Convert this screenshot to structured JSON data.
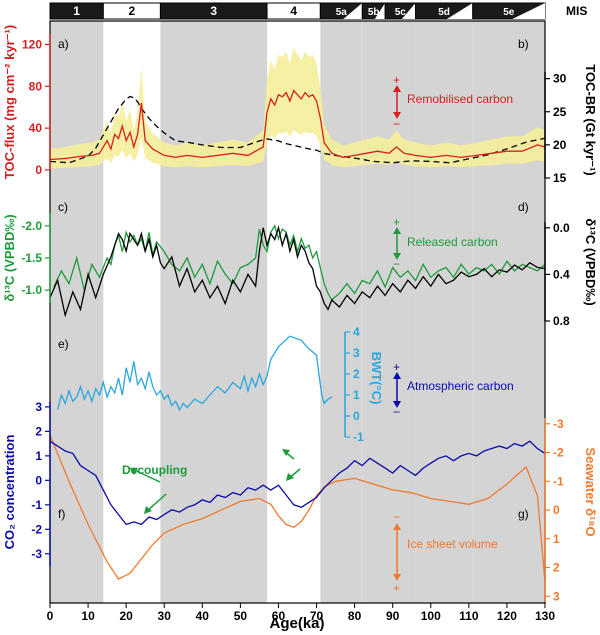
{
  "colors": {
    "toc_flux": "#d62020",
    "toc_flux_error": "#f5ee9a",
    "toc_br": "#000000",
    "d13c_green": "#1e9a3c",
    "d13c_black": "#000000",
    "bwt": "#2aa7dd",
    "co2": "#0a0aa8",
    "seawater_d18o": "#f07a30",
    "shading": "#d4d4d4",
    "mis_bar": "#1a1a1a"
  },
  "mis": {
    "label": "MIS",
    "stages": [
      {
        "name": "1",
        "start": 0,
        "end": 14
      },
      {
        "name": "2",
        "start": 14,
        "end": 29
      },
      {
        "name": "3",
        "start": 29,
        "end": 57
      },
      {
        "name": "4",
        "start": 57,
        "end": 71
      },
      {
        "name": "5a",
        "start": 71,
        "end": 82
      },
      {
        "name": "5b",
        "start": 82,
        "end": 88
      },
      {
        "name": "5c",
        "start": 88,
        "end": 96
      },
      {
        "name": "5d",
        "start": 96,
        "end": 111
      },
      {
        "name": "5e",
        "start": 111,
        "end": 130
      }
    ]
  },
  "x_axis": {
    "label": "Age(ka)",
    "range": [
      0,
      130
    ],
    "ticks": [
      0,
      10,
      20,
      30,
      40,
      50,
      60,
      70,
      80,
      90,
      100,
      110,
      120,
      130
    ]
  },
  "annotations": {
    "panel_a": "a)",
    "panel_b": "b)",
    "panel_c": "c)",
    "panel_d": "d)",
    "panel_e": "e)",
    "panel_f": "f)",
    "panel_g": "g)",
    "remobilised": "Remobilised carbon",
    "released": "Released carbon",
    "atmospheric": "Atmospheric carbon",
    "ice_sheet": "Ice sheet volume",
    "decoupling": "Decoupling",
    "plus": "+",
    "minus": "−"
  },
  "chart_data": [
    {
      "type": "area",
      "ylabel": "TOC-flux (mg cm⁻² kyr⁻¹)",
      "ylim": [
        0,
        130
      ],
      "yticks": [
        0,
        40,
        80,
        120
      ],
      "series": [
        {
          "x": [
            0,
            4,
            8,
            11,
            13,
            15,
            16,
            17,
            18,
            19,
            20,
            21,
            22,
            23,
            24,
            25,
            26,
            27,
            28,
            30,
            33,
            36,
            40,
            44,
            48,
            52,
            54,
            56,
            57,
            58,
            59,
            60,
            61,
            62,
            63,
            64,
            65,
            66,
            67,
            68,
            69,
            70,
            71,
            72,
            74,
            77,
            80,
            83,
            86,
            89,
            91,
            93,
            96,
            100,
            104,
            108,
            112,
            116,
            120,
            124,
            128,
            130
          ],
          "values": [
            10,
            11,
            13,
            14,
            16,
            28,
            20,
            34,
            30,
            42,
            28,
            36,
            22,
            34,
            64,
            28,
            24,
            20,
            18,
            14,
            12,
            14,
            12,
            14,
            16,
            14,
            18,
            22,
            55,
            68,
            62,
            72,
            70,
            74,
            66,
            76,
            72,
            68,
            74,
            70,
            72,
            66,
            50,
            26,
            16,
            12,
            14,
            16,
            18,
            16,
            22,
            16,
            14,
            12,
            14,
            12,
            14,
            16,
            18,
            18,
            24,
            22
          ]
        }
      ]
    },
    {
      "type": "line",
      "ylabel": "TOC-BR (Gt kyr⁻¹)",
      "ylim": [
        15,
        31
      ],
      "yticks": [
        15,
        20,
        25,
        30
      ],
      "series": [
        {
          "x": [
            0,
            5,
            10,
            12,
            15,
            18,
            20,
            21,
            22,
            23,
            24,
            26,
            28,
            30,
            33,
            36,
            40,
            45,
            50,
            55,
            57,
            60,
            62,
            65,
            68,
            70,
            72,
            75,
            80,
            85,
            90,
            95,
            100,
            105,
            110,
            115,
            120,
            125,
            130
          ],
          "values": [
            17.5,
            17.3,
            18.3,
            19.5,
            22.5,
            25.5,
            26.9,
            27.3,
            27.1,
            26.5,
            25.5,
            24.0,
            22.8,
            21.8,
            20.6,
            20.4,
            20.0,
            19.6,
            19.6,
            20.6,
            20.9,
            20.6,
            20.2,
            19.8,
            19.4,
            19.2,
            18.7,
            18.4,
            18.0,
            17.5,
            17.3,
            17.6,
            17.5,
            17.3,
            17.9,
            18.5,
            19.4,
            20.4,
            21.0
          ]
        }
      ]
    },
    {
      "type": "line",
      "ylabel": "δ¹³C (VPBD‰)",
      "ylim": [
        -0.8,
        -2.2
      ],
      "yticks": [
        -1.0,
        -1.5,
        -2.0
      ],
      "series": [
        {
          "x": [
            1,
            3,
            5,
            7,
            9,
            11,
            13,
            15,
            16,
            17,
            18,
            19,
            20,
            21,
            22,
            23,
            24,
            25,
            26,
            27,
            28,
            30,
            32,
            34,
            36,
            38,
            40,
            42,
            44,
            46,
            48,
            50,
            52,
            54,
            55,
            56,
            57,
            58,
            59,
            60,
            61,
            62,
            63,
            64,
            65,
            66,
            67,
            68,
            69,
            70,
            71,
            72,
            73,
            74,
            76,
            78,
            80,
            82,
            84,
            86,
            88,
            90,
            92,
            94,
            96,
            98,
            100,
            102,
            104,
            106,
            108,
            110,
            112,
            114,
            116,
            118,
            120,
            122,
            124,
            126,
            128,
            130
          ],
          "values": [
            -1.05,
            -1.3,
            -1.1,
            -1.5,
            -1.0,
            -1.4,
            -1.2,
            -1.5,
            -1.4,
            -1.7,
            -1.85,
            -1.6,
            -1.9,
            -1.75,
            -1.85,
            -1.7,
            -1.8,
            -1.6,
            -1.9,
            -1.55,
            -1.75,
            -1.6,
            -1.4,
            -1.3,
            -1.5,
            -1.2,
            -1.4,
            -1.1,
            -1.45,
            -1.25,
            -1.1,
            -1.35,
            -1.4,
            -1.5,
            -1.95,
            -1.7,
            -1.6,
            -1.9,
            -2.0,
            -1.8,
            -1.95,
            -1.9,
            -1.7,
            -1.85,
            -1.6,
            -1.8,
            -1.65,
            -1.7,
            -1.5,
            -1.6,
            -1.35,
            -1.1,
            -0.95,
            -0.85,
            -0.95,
            -1.1,
            -0.95,
            -1.15,
            -1.1,
            -1.3,
            -1.05,
            -1.35,
            -1.2,
            -1.3,
            -1.15,
            -1.4,
            -1.2,
            -1.3,
            -1.35,
            -1.2,
            -1.4,
            -1.25,
            -1.35,
            -1.3,
            -1.4,
            -1.25,
            -1.45,
            -1.3,
            -1.4,
            -1.35,
            -1.3,
            -1.4
          ]
        }
      ]
    },
    {
      "type": "line",
      "ylabel": "δ¹³C (VPBD‰)",
      "ylim": [
        0.8,
        -0.05
      ],
      "yticks": [
        0.0,
        0.4,
        0.8
      ],
      "series": [
        {
          "x": [
            0,
            2,
            4,
            6,
            8,
            10,
            12,
            14,
            16,
            17,
            18,
            19,
            20,
            21,
            22,
            23,
            24,
            25,
            26,
            27,
            28,
            29,
            30,
            32,
            34,
            36,
            38,
            40,
            42,
            44,
            46,
            48,
            50,
            52,
            54,
            55,
            56,
            57,
            58,
            59,
            60,
            61,
            62,
            63,
            64,
            65,
            66,
            67,
            68,
            69,
            70,
            71,
            72,
            73,
            74,
            76,
            78,
            80,
            82,
            84,
            86,
            88,
            90,
            92,
            94,
            96,
            98,
            100,
            102,
            104,
            106,
            108,
            110,
            112,
            114,
            116,
            118,
            120,
            122,
            124,
            126,
            128,
            130
          ],
          "values": [
            0.6,
            0.45,
            0.75,
            0.55,
            0.7,
            0.4,
            0.6,
            0.4,
            0.25,
            0.15,
            0.05,
            0.1,
            0.2,
            0.05,
            0.1,
            0.15,
            0.05,
            0.2,
            0.1,
            0.25,
            0.15,
            0.3,
            0.35,
            0.25,
            0.5,
            0.35,
            0.55,
            0.45,
            0.6,
            0.5,
            0.65,
            0.45,
            0.55,
            0.4,
            0.5,
            0.2,
            0.0,
            0.15,
            0.05,
            0.1,
            0.0,
            0.15,
            0.05,
            0.2,
            0.1,
            0.25,
            0.15,
            0.2,
            0.3,
            0.35,
            0.5,
            0.55,
            0.65,
            0.7,
            0.62,
            0.68,
            0.58,
            0.65,
            0.55,
            0.6,
            0.5,
            0.58,
            0.48,
            0.55,
            0.45,
            0.52,
            0.42,
            0.5,
            0.4,
            0.48,
            0.45,
            0.38,
            0.42,
            0.4,
            0.35,
            0.42,
            0.36,
            0.38,
            0.32,
            0.36,
            0.3,
            0.34,
            0.35
          ]
        }
      ]
    },
    {
      "type": "line",
      "ylabel": "BWT(°C)",
      "ylim": [
        -1,
        4
      ],
      "yticks": [
        -1,
        0,
        1,
        2,
        3,
        4
      ],
      "series": [
        {
          "x": [
            2,
            3,
            4,
            5,
            6,
            7,
            8,
            9,
            10,
            11,
            12,
            13,
            14,
            15,
            16,
            17,
            18,
            19,
            20,
            21,
            22,
            23,
            24,
            25,
            26,
            27,
            28,
            29,
            30,
            31,
            32,
            33,
            34,
            35,
            36,
            38,
            40,
            42,
            44,
            46,
            48,
            50,
            51,
            52,
            53,
            54,
            55,
            56,
            57,
            58,
            60,
            63,
            66,
            68,
            70,
            71,
            71.5,
            72,
            73,
            74
          ],
          "values": [
            0.3,
            1.0,
            0.6,
            1.2,
            0.7,
            0.9,
            1.4,
            0.8,
            1.2,
            0.7,
            1.3,
            1.0,
            1.6,
            0.9,
            1.4,
            1.1,
            1.8,
            1.0,
            2.3,
            1.6,
            2.6,
            1.5,
            1.8,
            1.3,
            2.1,
            1.4,
            1.0,
            1.2,
            0.8,
            1.0,
            0.5,
            0.7,
            0.3,
            0.6,
            0.4,
            0.8,
            0.6,
            1.0,
            1.4,
            1.1,
            1.6,
            1.3,
            1.9,
            1.2,
            1.8,
            1.4,
            2.0,
            1.5,
            1.9,
            2.7,
            3.3,
            3.8,
            3.6,
            3.2,
            2.9,
            1.5,
            0.9,
            0.6,
            0.8,
            0.9
          ]
        }
      ]
    },
    {
      "type": "line",
      "ylabel": "CO₂ concentration",
      "ylim": [
        -3.5,
        3.2
      ],
      "yticks": [
        -3,
        -2,
        -1,
        0,
        1,
        2,
        3
      ],
      "series": [
        {
          "x": [
            0,
            2,
            4,
            6,
            8,
            10,
            12,
            14,
            16,
            18,
            20,
            22,
            24,
            26,
            28,
            30,
            32,
            34,
            36,
            38,
            40,
            42,
            44,
            46,
            48,
            50,
            52,
            54,
            56,
            58,
            60,
            62,
            64,
            66,
            68,
            70,
            72,
            74,
            76,
            78,
            80,
            82,
            84,
            86,
            88,
            90,
            92,
            94,
            96,
            98,
            100,
            102,
            104,
            106,
            108,
            110,
            112,
            114,
            116,
            118,
            120,
            122,
            124,
            126,
            128,
            130
          ],
          "values": [
            1.6,
            1.4,
            1.2,
            1.1,
            0.6,
            0.4,
            0.2,
            -0.4,
            -1.0,
            -1.4,
            -1.8,
            -1.7,
            -1.8,
            -1.5,
            -1.6,
            -1.4,
            -1.2,
            -1.3,
            -1.1,
            -1.0,
            -0.8,
            -0.9,
            -0.6,
            -0.7,
            -0.5,
            -0.6,
            -0.3,
            -0.4,
            -0.2,
            -0.4,
            -0.2,
            -0.6,
            -1.0,
            -1.1,
            -0.9,
            -0.7,
            -0.3,
            0.0,
            0.3,
            0.5,
            0.8,
            0.6,
            0.9,
            0.7,
            0.5,
            0.3,
            0.6,
            0.4,
            0.2,
            0.5,
            0.7,
            0.9,
            1.0,
            0.8,
            1.0,
            1.1,
            1.0,
            1.2,
            1.3,
            1.4,
            1.3,
            1.5,
            1.4,
            1.6,
            1.3,
            1.1
          ]
        }
      ]
    },
    {
      "type": "line",
      "ylabel": "Seawater δ¹⁸O",
      "ylim": [
        3.2,
        -3.2
      ],
      "yticks": [
        -3,
        -2,
        -1,
        0,
        1,
        2,
        3
      ],
      "series": [
        {
          "x": [
            0,
            5,
            10,
            15,
            18,
            21,
            24,
            27,
            30,
            35,
            40,
            45,
            50,
            55,
            58,
            60,
            62,
            64,
            66,
            68,
            70,
            72,
            75,
            80,
            85,
            90,
            95,
            100,
            105,
            110,
            115,
            120,
            125,
            128,
            130
          ],
          "values": [
            -2.6,
            -1.0,
            0.5,
            1.8,
            2.4,
            2.2,
            1.7,
            1.2,
            0.8,
            0.5,
            0.3,
            0.0,
            -0.3,
            -0.4,
            -0.2,
            0.2,
            0.5,
            0.6,
            0.4,
            0.0,
            -0.5,
            -0.8,
            -1.0,
            -1.1,
            -0.9,
            -0.7,
            -0.6,
            -0.4,
            -0.3,
            -0.2,
            -0.4,
            -0.9,
            -1.5,
            -0.5,
            2.5
          ]
        }
      ]
    }
  ]
}
